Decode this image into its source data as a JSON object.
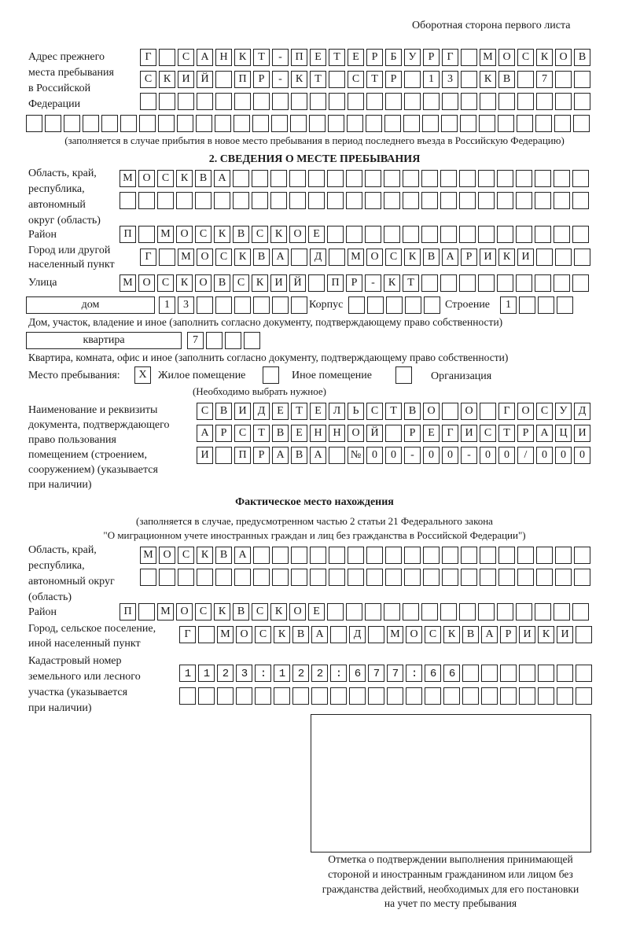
{
  "header": {
    "page_side": "Оборотная сторона первого листа"
  },
  "previous_address": {
    "label": [
      "Адрес прежнего",
      "места пребывания",
      "в Российской",
      "Федерации"
    ],
    "rows": [
      "Г САНКТ-ПЕТЕРБУРГ МОСКОВ",
      "СКИЙ ПР-КТ СТР 13 КВ 7",
      "",
      ""
    ],
    "note": "(заполняется в случае прибытия в новое место пребывания в период последнего въезда в Российскую Федерацию)"
  },
  "section2": {
    "title": "2. СВЕДЕНИЯ О МЕСТЕ ПРЕБЫВАНИЯ",
    "region_label": [
      "Область, край,",
      "республика,",
      "автономный",
      "округ (область)"
    ],
    "region_rows": [
      "МОСКВА",
      ""
    ],
    "district_label": "Район",
    "district": "П МОСКВСКОЕ",
    "city_label": [
      "Город или другой",
      "населенный пункт"
    ],
    "city": "Г МОСКВА Д МОСКВАРИКИ",
    "street_label": "Улица",
    "street": "МОСКОВСКИЙ ПР-КТ",
    "house_type": "дом",
    "house_number": "13",
    "building_label": "Корпус",
    "building": "",
    "structure_label": "Строение",
    "structure": "1",
    "house_note": "Дом, участок, владение и иное (заполнить согласно документу, подтверждающему право собственности)",
    "apartment_type": "квартира",
    "apartment_number": "7",
    "apartment_note": "Квартира, комната, офис и иное (заполнить согласно документу, подтверждающему право собственности)",
    "stay_place_label": "Место пребывания:",
    "stay_options": [
      {
        "label": "Жилое помещение",
        "mark": "X",
        "checked": true
      },
      {
        "label": "Иное помещение",
        "mark": "",
        "checked": false
      },
      {
        "label": "Организация",
        "mark": "",
        "checked": false
      }
    ],
    "stay_note": "(Необходимо выбрать нужное)",
    "document_label": [
      "Наименование и реквизиты",
      "документа, подтверждающего",
      "право пользования",
      "помещением (строением,",
      "сооружением) (указывается",
      "при наличии)"
    ],
    "document_rows": [
      "СВИДЕТЕЛЬСТВО О ГОСУД",
      "АРСТВЕННОЙ РЕГИСТРАЦИ",
      "И ПРАВА №00-00-00/000"
    ]
  },
  "actual_location": {
    "title": "Фактическое место нахождения",
    "note": [
      "(заполняется в случае, предусмотренном частью 2 статьи 21 Федерального закона",
      "\"О миграционном учете иностранных граждан и лиц без гражданства в Российской Федерации\")"
    ],
    "region_label": [
      "Область, край,",
      "республика,",
      "автономный округ",
      "(область)"
    ],
    "region_rows": [
      "МОСКВА",
      ""
    ],
    "district_label": "Район",
    "district": "П МОСКВСКОЕ",
    "city_label": [
      "Город, сельское поселение,",
      "иной населенный пункт"
    ],
    "city": "Г МОСКВА Д МОСКВАРИКИ",
    "cadastral_label": [
      "Кадастровый номер",
      "земельного или лесного",
      "участка (указывается",
      "при наличии)"
    ],
    "cadastral_rows": [
      "1123:122:677:66",
      ""
    ]
  },
  "confirmation": {
    "caption": [
      "Отметка о подтверждении выполнения принимающей",
      "стороной и иностранным гражданином или лицом без",
      "гражданства действий, необходимых для его постановки",
      "на учет по месту пребывания"
    ]
  }
}
